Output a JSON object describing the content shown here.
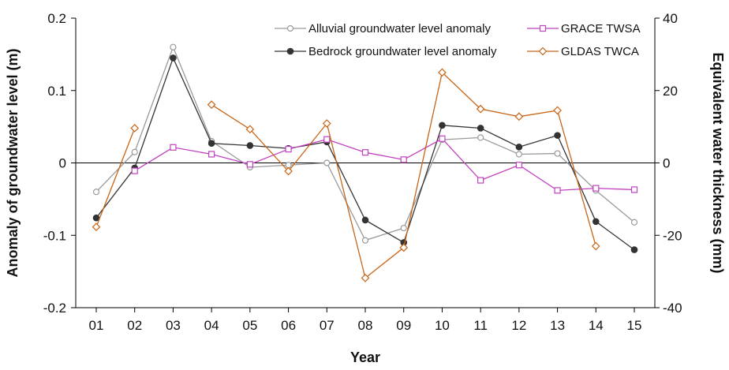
{
  "chart_data": {
    "type": "line",
    "xlabel": "Year",
    "ylabel_left": "Anomaly of groundwater level (m)",
    "ylabel_right": "Equivalent water thickness (mm)",
    "categories": [
      "01",
      "02",
      "03",
      "04",
      "05",
      "06",
      "07",
      "08",
      "09",
      "10",
      "11",
      "12",
      "13",
      "14",
      "15"
    ],
    "ylim_left": [
      -0.2,
      0.2
    ],
    "yticks_left": [
      "-0.2",
      "-0.1",
      "0",
      "0.1",
      "0.2"
    ],
    "ylim_right": [
      -40,
      40
    ],
    "yticks_right": [
      "-40",
      "-20",
      "0",
      "20",
      "40"
    ],
    "legend_position": "top",
    "series": [
      {
        "name": "Alluvial groundwater level anomaly",
        "axis": "left",
        "color": "#9a9a9a",
        "marker": "circle-open",
        "values": [
          -0.04,
          0.015,
          0.16,
          0.03,
          -0.006,
          -0.003,
          0.0,
          -0.107,
          -0.09,
          0.032,
          0.035,
          0.012,
          0.013,
          -0.038,
          -0.082
        ]
      },
      {
        "name": "Bedrock groundwater level anomaly",
        "axis": "left",
        "color": "#333333",
        "marker": "circle-filled",
        "values": [
          -0.076,
          -0.007,
          0.145,
          0.027,
          0.024,
          0.02,
          0.029,
          -0.079,
          -0.11,
          0.052,
          0.048,
          0.022,
          0.038,
          -0.081,
          -0.12
        ]
      },
      {
        "name": "GRACE TWSA",
        "axis": "right",
        "color": "#c040c0",
        "marker": "square-open",
        "values": [
          null,
          -2.2,
          4.3,
          2.4,
          -0.4,
          3.8,
          6.5,
          2.9,
          0.9,
          6.7,
          -4.8,
          -0.6,
          -7.6,
          -7.0,
          -7.4
        ]
      },
      {
        "name": "GLDAS TWCA",
        "axis": "right",
        "color": "#c86414",
        "marker": "diamond-open",
        "values": [
          -17.7,
          9.6,
          null,
          16.1,
          9.3,
          -2.3,
          10.9,
          -31.8,
          -23.4,
          25.0,
          14.9,
          12.8,
          14.5,
          -23.0,
          null
        ]
      }
    ]
  }
}
